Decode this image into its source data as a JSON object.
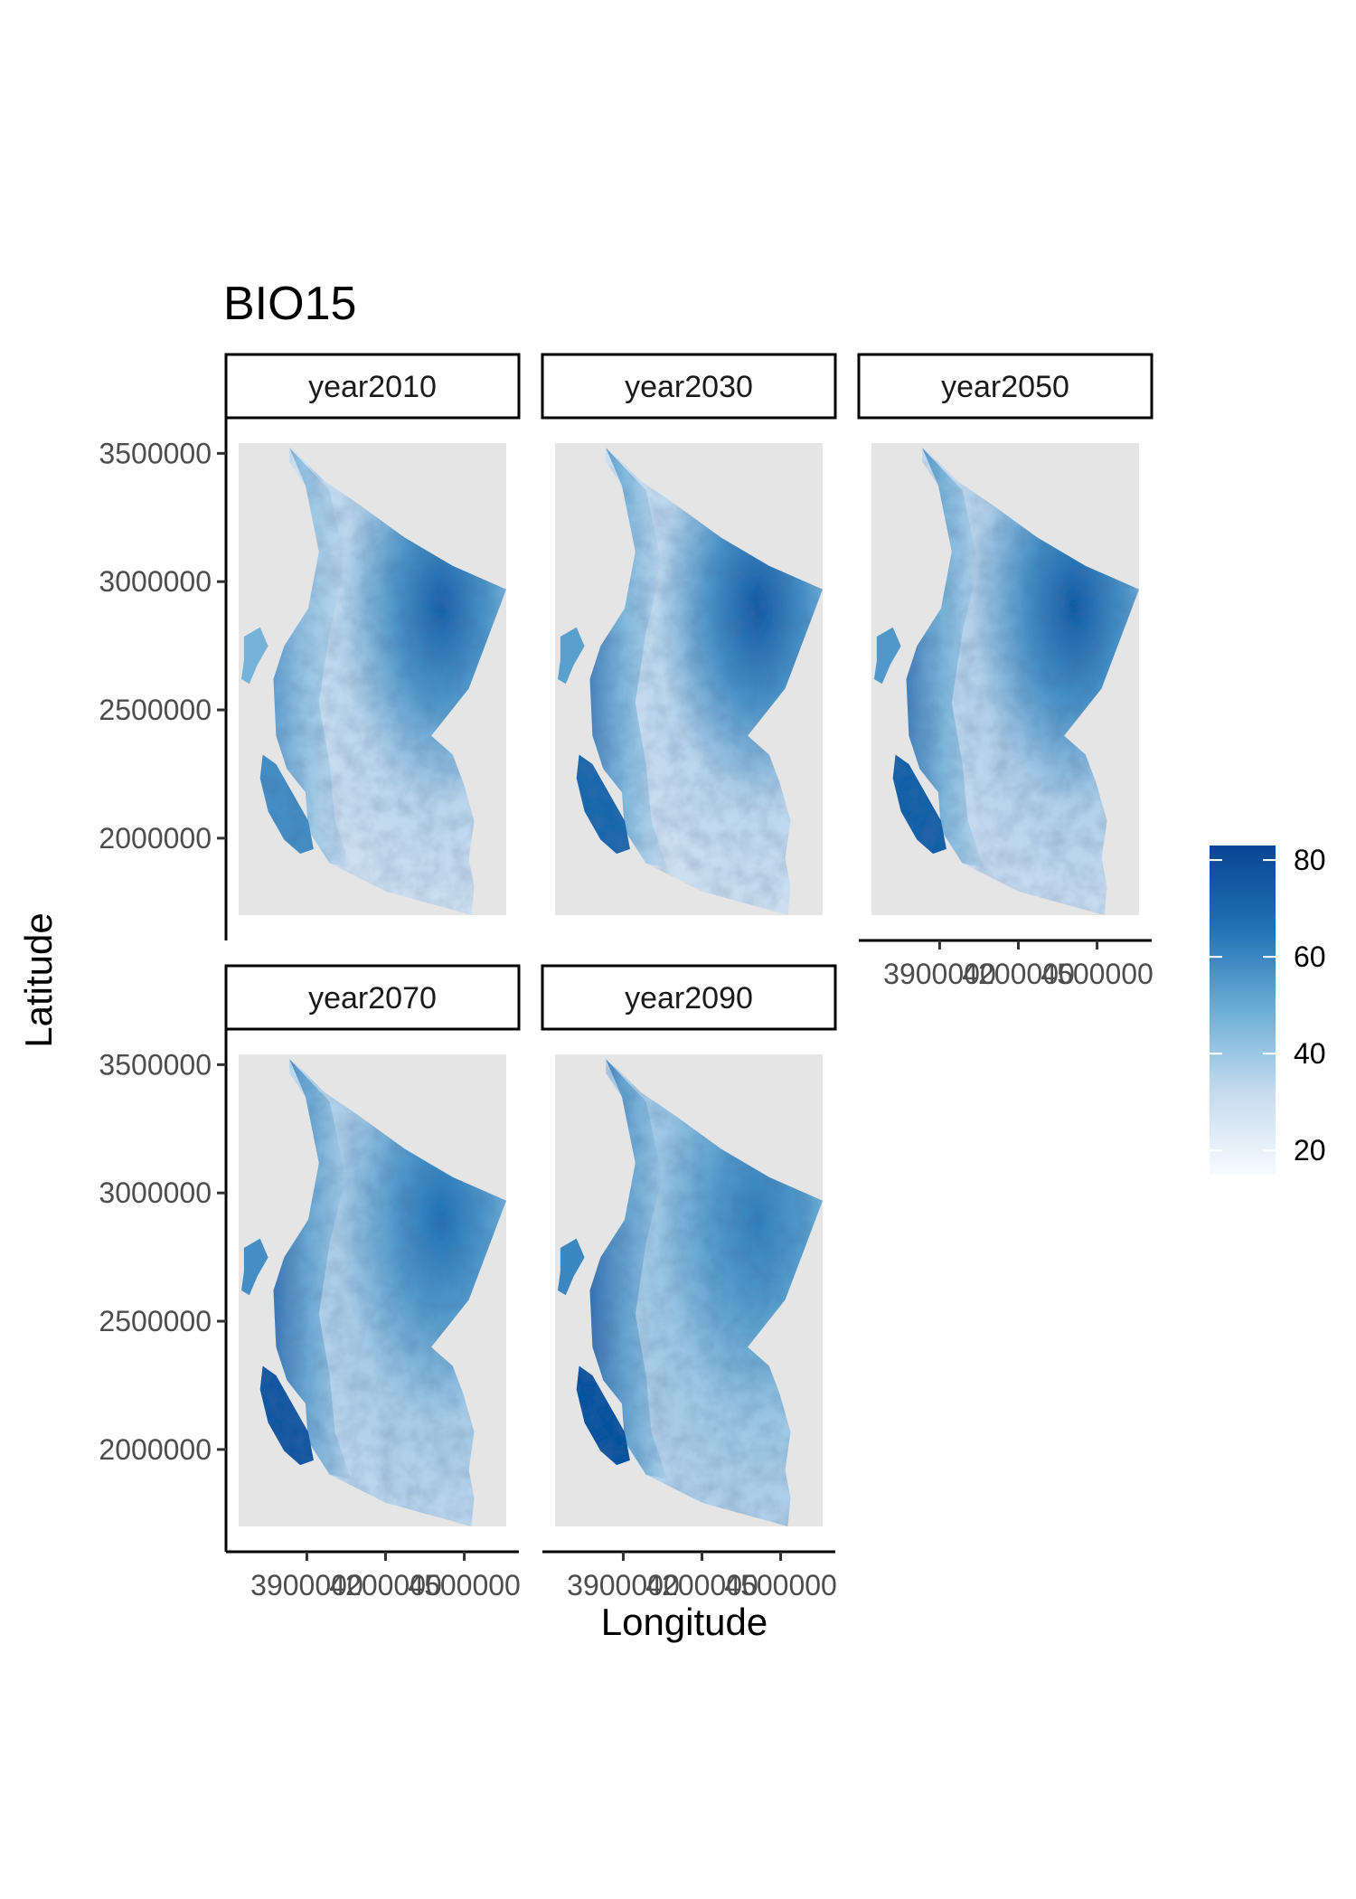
{
  "chart_data": {
    "type": "heatmap",
    "title": "BIO15",
    "xlabel": "Longitude",
    "ylabel": "Latitude",
    "facets": [
      "year2010",
      "year2030",
      "year2050",
      "year2070",
      "year2090"
    ],
    "x_ticks": [
      {
        "value": 3900000,
        "label": "3900000"
      },
      {
        "value": 4200000,
        "label": "4200000"
      },
      {
        "value": 4500000,
        "label": "4500000"
      }
    ],
    "y_ticks": [
      {
        "value": 3500000,
        "label": "3500000"
      },
      {
        "value": 3000000,
        "label": "3000000"
      },
      {
        "value": 2500000,
        "label": "2500000"
      },
      {
        "value": 2000000,
        "label": "2000000"
      }
    ],
    "xlim": [
      3640000,
      4660000
    ],
    "ylim": [
      1700000,
      3540000
    ],
    "fill_scale": {
      "range": [
        15,
        83
      ],
      "breaks": [
        80,
        60,
        40,
        20
      ],
      "low_color": "#f7fbff",
      "high_color": "#084594"
    },
    "regions": {
      "northeast_max": [
        72,
        75,
        74,
        66,
        62
      ],
      "coast_south_max": [
        58,
        70,
        72,
        76,
        78
      ],
      "interior_min": [
        28,
        28,
        30,
        32,
        34
      ]
    }
  },
  "colors": {
    "panel_background": "#e5e5e5",
    "axis_line": "#000000",
    "strip_border": "#000000"
  }
}
